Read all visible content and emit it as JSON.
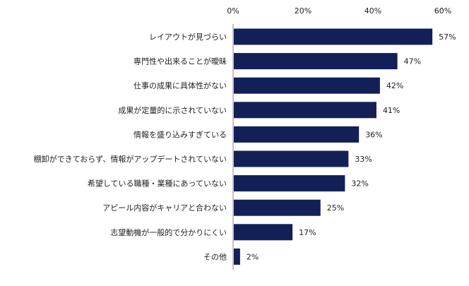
{
  "chart_data": {
    "type": "bar",
    "orientation": "horizontal",
    "categories": [
      "レイアウトが見づらい",
      "専門性や出来ることが曖昧",
      "仕事の成果に具体性がない",
      "成果が定量的に示されていない",
      "情報を盛り込みすぎている",
      "棚卸ができておらず、情報がアップデートされていない",
      "希望している職種・業種にあっていない",
      "アピール内容がキャリアと合わない",
      "志望動機が一般的で分かりにくい",
      "その他"
    ],
    "values": [
      57,
      47,
      42,
      41,
      36,
      33,
      32,
      25,
      17,
      2
    ],
    "value_labels": [
      "57%",
      "47%",
      "42%",
      "41%",
      "36%",
      "33%",
      "32%",
      "25%",
      "17%",
      "2%"
    ],
    "x_ticks": [
      "0%",
      "20%",
      "40%",
      "60%"
    ],
    "x_tick_values": [
      0,
      20,
      40,
      60
    ],
    "xlim": [
      0,
      60
    ],
    "bar_color": "#132058",
    "grid": false,
    "legend": "none"
  }
}
